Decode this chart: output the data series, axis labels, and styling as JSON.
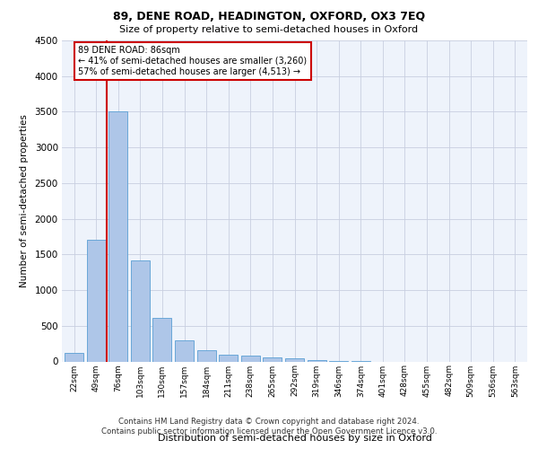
{
  "title": "89, DENE ROAD, HEADINGTON, OXFORD, OX3 7EQ",
  "subtitle": "Size of property relative to semi-detached houses in Oxford",
  "xlabel": "Distribution of semi-detached houses by size in Oxford",
  "ylabel": "Number of semi-detached properties",
  "bar_labels": [
    "22sqm",
    "49sqm",
    "76sqm",
    "103sqm",
    "130sqm",
    "157sqm",
    "184sqm",
    "211sqm",
    "238sqm",
    "265sqm",
    "292sqm",
    "319sqm",
    "346sqm",
    "374sqm",
    "401sqm",
    "428sqm",
    "455sqm",
    "482sqm",
    "509sqm",
    "536sqm",
    "563sqm"
  ],
  "bar_values": [
    120,
    1700,
    3500,
    1420,
    610,
    290,
    155,
    100,
    85,
    55,
    40,
    15,
    5,
    5,
    0,
    0,
    0,
    0,
    0,
    0,
    0
  ],
  "bar_color": "#aec6e8",
  "bar_edge_color": "#5a9fd4",
  "red_line_x": 1.5,
  "property_size": "86sqm",
  "pct_smaller": 41,
  "n_smaller": "3,260",
  "pct_larger": 57,
  "n_larger": "4,513",
  "annotation_box_color": "#ffffff",
  "annotation_box_edge": "#cc0000",
  "ylim": [
    0,
    4500
  ],
  "yticks": [
    0,
    500,
    1000,
    1500,
    2000,
    2500,
    3000,
    3500,
    4000,
    4500
  ],
  "footer_line1": "Contains HM Land Registry data © Crown copyright and database right 2024.",
  "footer_line2": "Contains public sector information licensed under the Open Government Licence v3.0.",
  "plot_bg_color": "#eef3fb"
}
